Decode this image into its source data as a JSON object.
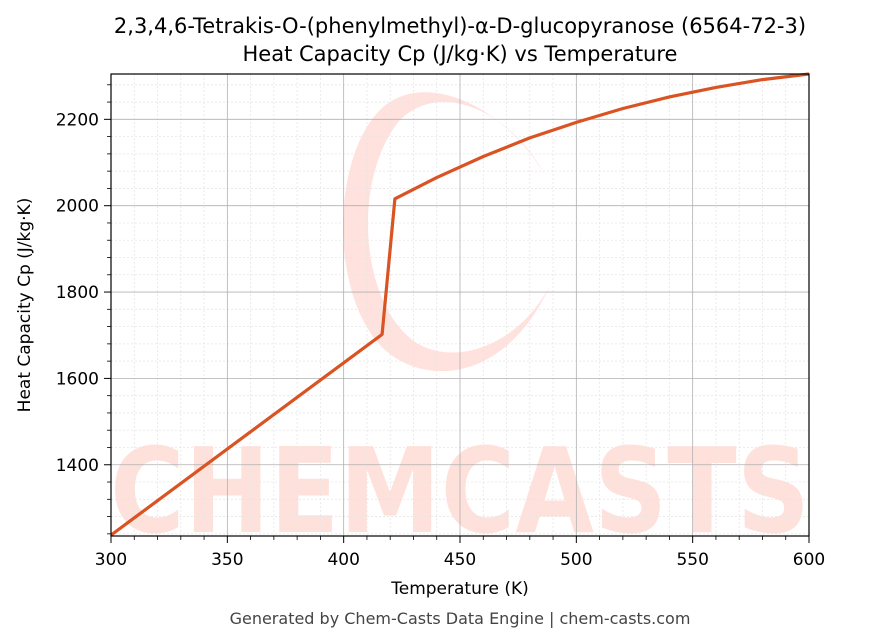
{
  "chart_data": {
    "type": "line",
    "title_line1": "2,3,4,6-Tetrakis-O-(phenylmethyl)-α-D-glucopyranose (6564-72-3)",
    "title_line2": "Heat Capacity Cp (J/kg·K) vs Temperature",
    "xlabel": "Temperature (K)",
    "ylabel": "Heat Capacity Cp (J/kg·K)",
    "xlim": [
      300,
      600
    ],
    "ylim": [
      1235,
      2305
    ],
    "xticks": [
      300,
      350,
      400,
      450,
      500,
      550,
      600
    ],
    "yticks": [
      1400,
      1600,
      1800,
      2000,
      2200
    ],
    "grid": true,
    "line_color": "#d95323",
    "series": [
      {
        "x": [
          300,
          416.5,
          422,
          440,
          460,
          480,
          500,
          520,
          540,
          560,
          580,
          600
        ],
        "y": [
          1237,
          1702,
          2016,
          2065,
          2114,
          2157,
          2193,
          2225,
          2252,
          2274,
          2292,
          2305
        ]
      }
    ]
  },
  "watermark": "CHEMCASTS",
  "footer": "Generated by Chem-Casts Data Engine | chem-casts.com"
}
